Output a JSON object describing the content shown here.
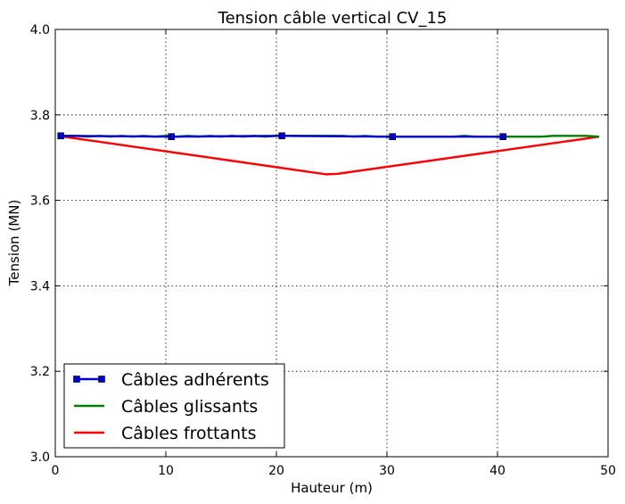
{
  "chart_data": {
    "type": "line",
    "title": "Tension câble vertical CV_15",
    "xlabel": "Hauteur (m)",
    "ylabel": "Tension (MN)",
    "xlim": [
      0,
      50
    ],
    "ylim": [
      3.0,
      4.0
    ],
    "xticks": [
      0,
      10,
      20,
      30,
      40,
      50
    ],
    "yticks": [
      3.0,
      3.2,
      3.4,
      3.6,
      3.8,
      4.0
    ],
    "grid": true,
    "legend_position": "lower-left",
    "series": [
      {
        "name": "Câbles adhérents",
        "color": "#0000cc",
        "marker": "square",
        "x": [
          0.5,
          10.5,
          20.5,
          30.5,
          40.5
        ],
        "y": [
          3.751,
          3.749,
          3.751,
          3.749,
          3.749
        ]
      },
      {
        "name": "Câbles glissants",
        "color": "#007f00",
        "marker": "none",
        "x": [
          0.5,
          2.0,
          3.0,
          4.0,
          5.0,
          6.0,
          7.0,
          8.0,
          9.0,
          10.0,
          11.0,
          12.0,
          13.0,
          14.0,
          15.0,
          16.0,
          17.0,
          18.0,
          19.0,
          20.0,
          22.0,
          24.0,
          26.0,
          27.0,
          28.0,
          29.0,
          30.0,
          32.0,
          34.0,
          36.0,
          37.0,
          38.0,
          39.0,
          40.0,
          42.0,
          44.0,
          45.0,
          46.0,
          48.0,
          49.2
        ],
        "y": [
          3.751,
          3.751,
          3.749,
          3.751,
          3.749,
          3.751,
          3.749,
          3.751,
          3.749,
          3.751,
          3.749,
          3.751,
          3.749,
          3.751,
          3.749,
          3.751,
          3.749,
          3.751,
          3.749,
          3.751,
          3.751,
          3.751,
          3.751,
          3.749,
          3.751,
          3.749,
          3.749,
          3.749,
          3.749,
          3.749,
          3.751,
          3.749,
          3.749,
          3.749,
          3.749,
          3.749,
          3.751,
          3.751,
          3.751,
          3.749
        ]
      },
      {
        "name": "Câbles frottants",
        "color": "#ff0000",
        "marker": "none",
        "x": [
          0.5,
          24.5,
          25.5,
          49.2
        ],
        "y": [
          3.75,
          3.661,
          3.662,
          3.749
        ]
      }
    ]
  }
}
